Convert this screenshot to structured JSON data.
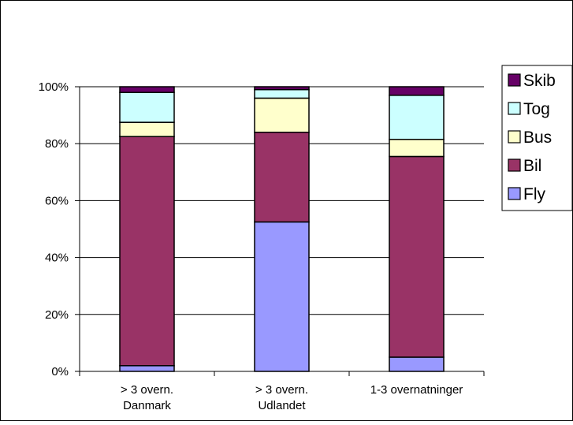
{
  "chart_data": {
    "type": "bar",
    "stacked": "percent",
    "categories": [
      [
        "> 3 overn.",
        "Danmark"
      ],
      [
        "> 3 overn.",
        "Udlandet"
      ],
      [
        "1-3 overnatninger"
      ]
    ],
    "series": [
      {
        "name": "Fly",
        "color": "#9999ff",
        "values": [
          2,
          52.5,
          5
        ]
      },
      {
        "name": "Bil",
        "color": "#993366",
        "values": [
          80.5,
          31.5,
          70.5
        ]
      },
      {
        "name": "Bus",
        "color": "#ffffcc",
        "values": [
          5,
          12,
          6
        ]
      },
      {
        "name": "Tog",
        "color": "#ccffff",
        "values": [
          10.5,
          3,
          15.5
        ]
      },
      {
        "name": "Skib",
        "color": "#660066",
        "values": [
          2,
          1,
          3
        ]
      }
    ],
    "y_ticks": [
      "0%",
      "20%",
      "40%",
      "60%",
      "80%",
      "100%"
    ],
    "ylim": [
      0,
      100
    ],
    "grid": true,
    "legend_position": "right",
    "legend_order": [
      "Skib",
      "Tog",
      "Bus",
      "Bil",
      "Fly"
    ]
  }
}
